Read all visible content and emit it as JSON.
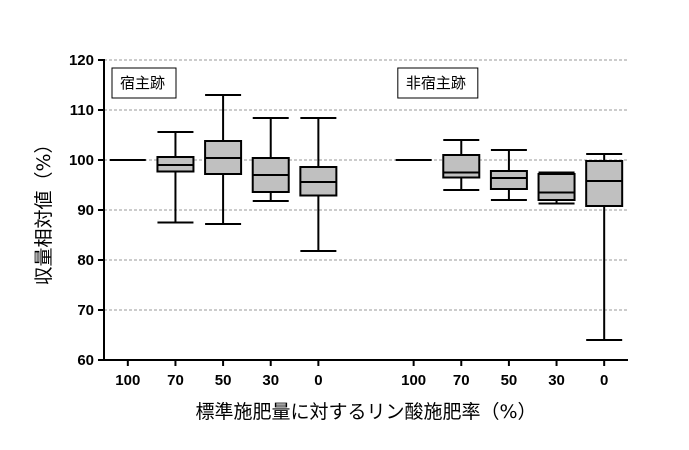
{
  "chart_data": {
    "type": "boxplot",
    "xlabel": "標準施肥量に対するリン酸施肥率（%）",
    "ylabel": "収量相対値（%）",
    "ylim": [
      60,
      120
    ],
    "yticks": [
      60,
      70,
      80,
      90,
      100,
      110,
      120
    ],
    "grid": "horizontal dashed",
    "box_color": "#c0c0c0",
    "groups": [
      {
        "name": "宿主跡",
        "categories": [
          "100",
          "70",
          "50",
          "30",
          "0"
        ],
        "boxes": [
          {
            "min": 100,
            "q1": 100,
            "median": 100,
            "q3": 100,
            "max": 100
          },
          {
            "min": 87.5,
            "q1": 97.7,
            "median": 99.0,
            "q3": 100.6,
            "max": 105.6
          },
          {
            "min": 87.2,
            "q1": 97.2,
            "median": 100.4,
            "q3": 103.8,
            "max": 113.0
          },
          {
            "min": 91.8,
            "q1": 93.6,
            "median": 97.0,
            "q3": 100.4,
            "max": 108.4
          },
          {
            "min": 81.8,
            "q1": 92.9,
            "median": 95.6,
            "q3": 98.6,
            "max": 108.4
          }
        ]
      },
      {
        "name": "非宿主跡",
        "categories": [
          "100",
          "70",
          "50",
          "30",
          "0"
        ],
        "boxes": [
          {
            "min": 100,
            "q1": 100,
            "median": 100,
            "q3": 100,
            "max": 100
          },
          {
            "min": 94.0,
            "q1": 96.5,
            "median": 97.5,
            "q3": 101.0,
            "max": 104.0
          },
          {
            "min": 92.0,
            "q1": 94.2,
            "median": 96.4,
            "q3": 97.8,
            "max": 102.0
          },
          {
            "min": 91.3,
            "q1": 92.0,
            "median": 93.5,
            "q3": 97.2,
            "max": 97.5
          },
          {
            "min": 64.0,
            "q1": 90.8,
            "median": 95.8,
            "q3": 99.8,
            "max": 101.2
          }
        ]
      }
    ]
  }
}
